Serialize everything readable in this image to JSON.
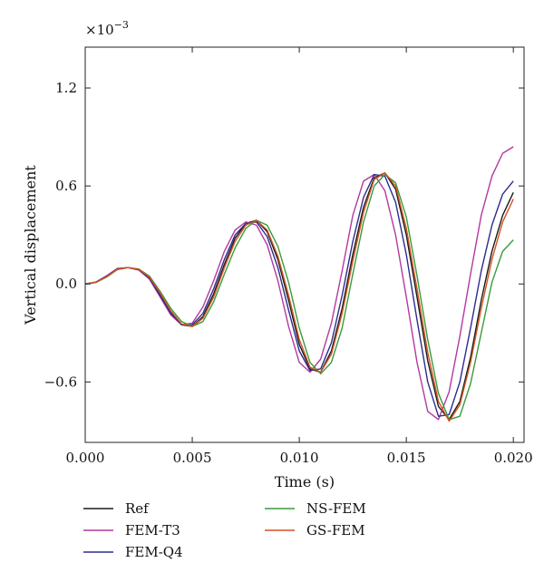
{
  "chart_data": {
    "type": "line",
    "title": "",
    "xlabel": "Time (s)",
    "ylabel": "Vertical displacement",
    "y_multiplier_label": "×10",
    "y_multiplier_exponent": "−3",
    "xlim": [
      0.0,
      0.0205
    ],
    "ylim": [
      -0.97,
      1.45
    ],
    "x_ticks": [
      0.0,
      0.005,
      0.01,
      0.015,
      0.02
    ],
    "x_tick_labels": [
      "0.000",
      "0.005",
      "0.010",
      "0.015",
      "0.020"
    ],
    "y_ticks": [
      -0.6,
      0.0,
      0.6,
      1.2
    ],
    "y_tick_labels": [
      "−0.6",
      "0.0",
      "0.6",
      "1.2"
    ],
    "grid": false,
    "legend_position": "bottom",
    "series": [
      {
        "name": "Ref",
        "color": "#1a1a1a",
        "x": [
          0.0,
          0.0005,
          0.001,
          0.0015,
          0.002,
          0.0025,
          0.003,
          0.0035,
          0.004,
          0.0045,
          0.005,
          0.0055,
          0.006,
          0.0065,
          0.007,
          0.0075,
          0.008,
          0.0085,
          0.009,
          0.0095,
          0.01,
          0.0105,
          0.011,
          0.0115,
          0.012,
          0.0125,
          0.013,
          0.0135,
          0.014,
          0.0145,
          0.015,
          0.0155,
          0.016,
          0.0165,
          0.017,
          0.0175,
          0.018,
          0.0185,
          0.019,
          0.0195,
          0.02
        ],
        "y": [
          0.0,
          0.01,
          0.045,
          0.09,
          0.1,
          0.09,
          0.04,
          -0.06,
          -0.17,
          -0.25,
          -0.26,
          -0.2,
          -0.06,
          0.12,
          0.28,
          0.37,
          0.39,
          0.32,
          0.15,
          -0.1,
          -0.37,
          -0.52,
          -0.54,
          -0.41,
          -0.15,
          0.18,
          0.47,
          0.65,
          0.68,
          0.58,
          0.3,
          -0.08,
          -0.47,
          -0.75,
          -0.83,
          -0.72,
          -0.45,
          -0.1,
          0.2,
          0.42,
          0.56
        ]
      },
      {
        "name": "FEM-T3",
        "color": "#b5389f",
        "x": [
          0.0,
          0.0005,
          0.001,
          0.0015,
          0.002,
          0.0025,
          0.003,
          0.0035,
          0.004,
          0.0045,
          0.005,
          0.0055,
          0.006,
          0.0065,
          0.007,
          0.0075,
          0.008,
          0.0085,
          0.009,
          0.0095,
          0.01,
          0.0105,
          0.011,
          0.0115,
          0.012,
          0.0125,
          0.013,
          0.0135,
          0.014,
          0.0145,
          0.015,
          0.0155,
          0.016,
          0.0165,
          0.017,
          0.0175,
          0.018,
          0.0185,
          0.019,
          0.0195,
          0.02
        ],
        "y": [
          0.0,
          0.012,
          0.05,
          0.095,
          0.1,
          0.085,
          0.03,
          -0.08,
          -0.19,
          -0.25,
          -0.24,
          -0.14,
          0.02,
          0.2,
          0.33,
          0.38,
          0.36,
          0.24,
          0.02,
          -0.26,
          -0.48,
          -0.54,
          -0.46,
          -0.24,
          0.08,
          0.42,
          0.63,
          0.67,
          0.57,
          0.3,
          -0.08,
          -0.48,
          -0.78,
          -0.83,
          -0.66,
          -0.32,
          0.06,
          0.42,
          0.66,
          0.8,
          0.84
        ]
      },
      {
        "name": "FEM-Q4",
        "color": "#2e2b8f",
        "x": [
          0.0,
          0.0005,
          0.001,
          0.0015,
          0.002,
          0.0025,
          0.003,
          0.0035,
          0.004,
          0.0045,
          0.005,
          0.0055,
          0.006,
          0.0065,
          0.007,
          0.0075,
          0.008,
          0.0085,
          0.009,
          0.0095,
          0.01,
          0.0105,
          0.011,
          0.0115,
          0.012,
          0.0125,
          0.013,
          0.0135,
          0.014,
          0.0145,
          0.015,
          0.0155,
          0.016,
          0.0165,
          0.017,
          0.0175,
          0.018,
          0.0185,
          0.019,
          0.0195,
          0.02
        ],
        "y": [
          0.0,
          0.011,
          0.047,
          0.092,
          0.1,
          0.088,
          0.035,
          -0.07,
          -0.18,
          -0.25,
          -0.25,
          -0.18,
          -0.03,
          0.15,
          0.3,
          0.37,
          0.38,
          0.29,
          0.1,
          -0.16,
          -0.41,
          -0.53,
          -0.52,
          -0.36,
          -0.07,
          0.26,
          0.53,
          0.67,
          0.66,
          0.5,
          0.18,
          -0.22,
          -0.6,
          -0.81,
          -0.8,
          -0.6,
          -0.27,
          0.08,
          0.36,
          0.55,
          0.63
        ]
      },
      {
        "name": "NS-FEM",
        "color": "#3a9a3a",
        "x": [
          0.0,
          0.0005,
          0.001,
          0.0015,
          0.002,
          0.0025,
          0.003,
          0.0035,
          0.004,
          0.0045,
          0.005,
          0.0055,
          0.006,
          0.0065,
          0.007,
          0.0075,
          0.008,
          0.0085,
          0.009,
          0.0095,
          0.01,
          0.0105,
          0.011,
          0.0115,
          0.012,
          0.0125,
          0.013,
          0.0135,
          0.014,
          0.0145,
          0.015,
          0.0155,
          0.016,
          0.0165,
          0.017,
          0.0175,
          0.018,
          0.0185,
          0.019,
          0.0195,
          0.02
        ],
        "y": [
          0.0,
          0.009,
          0.042,
          0.088,
          0.1,
          0.092,
          0.048,
          -0.045,
          -0.15,
          -0.23,
          -0.26,
          -0.23,
          -0.11,
          0.06,
          0.22,
          0.34,
          0.39,
          0.36,
          0.23,
          0.01,
          -0.27,
          -0.48,
          -0.55,
          -0.48,
          -0.27,
          0.06,
          0.38,
          0.6,
          0.67,
          0.62,
          0.41,
          0.05,
          -0.34,
          -0.67,
          -0.83,
          -0.81,
          -0.61,
          -0.3,
          0.01,
          0.2,
          0.27
        ]
      },
      {
        "name": "GS-FEM",
        "color": "#d2521f",
        "x": [
          0.0,
          0.0005,
          0.001,
          0.0015,
          0.002,
          0.0025,
          0.003,
          0.0035,
          0.004,
          0.0045,
          0.005,
          0.0055,
          0.006,
          0.0065,
          0.007,
          0.0075,
          0.008,
          0.0085,
          0.009,
          0.0095,
          0.01,
          0.0105,
          0.011,
          0.0115,
          0.012,
          0.0125,
          0.013,
          0.0135,
          0.014,
          0.0145,
          0.015,
          0.0155,
          0.016,
          0.0165,
          0.017,
          0.0175,
          0.018,
          0.0185,
          0.019,
          0.0195,
          0.02
        ],
        "y": [
          0.0,
          0.01,
          0.044,
          0.09,
          0.1,
          0.09,
          0.042,
          -0.055,
          -0.165,
          -0.245,
          -0.26,
          -0.21,
          -0.08,
          0.1,
          0.26,
          0.36,
          0.39,
          0.33,
          0.17,
          -0.07,
          -0.34,
          -0.51,
          -0.54,
          -0.43,
          -0.18,
          0.14,
          0.44,
          0.64,
          0.68,
          0.6,
          0.34,
          -0.03,
          -0.42,
          -0.72,
          -0.84,
          -0.74,
          -0.48,
          -0.15,
          0.15,
          0.38,
          0.52
        ]
      }
    ]
  }
}
